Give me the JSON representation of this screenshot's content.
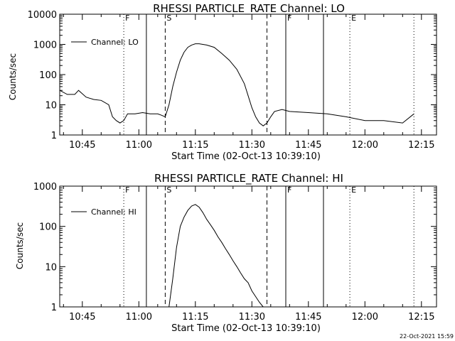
{
  "footer": {
    "date_stamp": "22-Oct-2021 15:59"
  },
  "chart_data": [
    {
      "type": "line",
      "title": "RHESSI PARTICLE_RATE Channel: LO",
      "xlabel": "Start Time (02-Oct-13 10:39:10)",
      "ylabel": "Counts/sec",
      "legend": "Channel: LO",
      "legend_position": "top-left",
      "yscale": "log",
      "ylim": [
        1,
        10000
      ],
      "yticks": [
        1,
        10,
        100,
        1000,
        10000
      ],
      "ytick_labels": [
        "1",
        "10",
        "100",
        "1000",
        "10000"
      ],
      "xlim": [
        "10:39",
        "12:19"
      ],
      "xticks": [
        "10:45",
        "11:00",
        "11:15",
        "11:30",
        "11:45",
        "12:00",
        "12:15"
      ],
      "grid": false,
      "markers": [
        {
          "x": "10:56",
          "style": "dotted",
          "label": "F"
        },
        {
          "x": "11:02",
          "style": "solid",
          "label": ""
        },
        {
          "x": "11:07",
          "style": "dashed",
          "label": "S"
        },
        {
          "x": "11:34",
          "style": "dashed",
          "label": ""
        },
        {
          "x": "11:39",
          "style": "solid",
          "label": "F"
        },
        {
          "x": "11:49",
          "style": "solid",
          "label": ""
        },
        {
          "x": "11:56",
          "style": "dotted",
          "label": "E"
        },
        {
          "x": "12:13",
          "style": "dotted",
          "label": ""
        }
      ],
      "series": [
        {
          "name": "Channel: LO",
          "x": [
            "10:39",
            "10:41",
            "10:43",
            "10:44",
            "10:46",
            "10:48",
            "10:50",
            "10:52",
            "10:53",
            "10:54",
            "10:55",
            "10:56",
            "10:57",
            "10:59",
            "11:01",
            "11:03",
            "11:05",
            "11:06",
            "11:07",
            "11:08",
            "11:09",
            "11:10",
            "11:11",
            "11:12",
            "11:13",
            "11:14",
            "11:15",
            "11:16",
            "11:17",
            "11:18",
            "11:20",
            "11:22",
            "11:24",
            "11:26",
            "11:28",
            "11:29",
            "11:30",
            "11:31",
            "11:32",
            "11:33",
            "11:34",
            "11:35",
            "11:36",
            "11:38",
            "11:40",
            "11:45",
            "11:50",
            "11:55",
            "12:00",
            "12:05",
            "12:10",
            "12:13"
          ],
          "y": [
            30,
            22,
            22,
            30,
            18,
            15,
            14,
            10,
            4,
            3,
            2.5,
            3,
            5,
            5,
            5.5,
            5,
            5,
            4.5,
            4,
            10,
            40,
            120,
            300,
            550,
            800,
            950,
            1050,
            1050,
            1000,
            950,
            800,
            500,
            300,
            150,
            50,
            20,
            8,
            4,
            2.5,
            2,
            2.5,
            4,
            6,
            7,
            6,
            5.5,
            5,
            4,
            3,
            3,
            2.5,
            5
          ]
        }
      ]
    },
    {
      "type": "line",
      "title": "RHESSI PARTICLE_RATE Channel: HI",
      "xlabel": "Start Time (02-Oct-13 10:39:10)",
      "ylabel": "Counts/sec",
      "legend": "Channel: HI",
      "legend_position": "top-left",
      "yscale": "log",
      "ylim": [
        1,
        1000
      ],
      "yticks": [
        1,
        10,
        100,
        1000
      ],
      "ytick_labels": [
        "1",
        "10",
        "100",
        "1000"
      ],
      "xlim": [
        "10:39",
        "12:19"
      ],
      "xticks": [
        "10:45",
        "11:00",
        "11:15",
        "11:30",
        "11:45",
        "12:00",
        "12:15"
      ],
      "grid": false,
      "markers": [
        {
          "x": "10:56",
          "style": "dotted",
          "label": "F"
        },
        {
          "x": "11:02",
          "style": "solid",
          "label": ""
        },
        {
          "x": "11:07",
          "style": "dashed",
          "label": "S"
        },
        {
          "x": "11:34",
          "style": "dashed",
          "label": ""
        },
        {
          "x": "11:39",
          "style": "solid",
          "label": "F"
        },
        {
          "x": "11:49",
          "style": "solid",
          "label": ""
        },
        {
          "x": "11:56",
          "style": "dotted",
          "label": "E"
        },
        {
          "x": "12:13",
          "style": "dotted",
          "label": ""
        }
      ],
      "series": [
        {
          "name": "Channel: HI",
          "x": [
            "11:08",
            "11:09",
            "11:10",
            "11:11",
            "11:12",
            "11:13",
            "11:14",
            "11:15",
            "11:16",
            "11:17",
            "11:18",
            "11:19",
            "11:20",
            "11:21",
            "11:22",
            "11:23",
            "11:24",
            "11:25",
            "11:26",
            "11:27",
            "11:28",
            "11:29",
            "11:30",
            "11:31",
            "11:32",
            "11:33"
          ],
          "y": [
            1,
            5,
            30,
            100,
            170,
            250,
            320,
            350,
            300,
            220,
            150,
            110,
            80,
            55,
            40,
            28,
            20,
            14,
            10,
            7,
            5,
            4,
            2.5,
            1.8,
            1.3,
            1
          ]
        }
      ]
    }
  ]
}
